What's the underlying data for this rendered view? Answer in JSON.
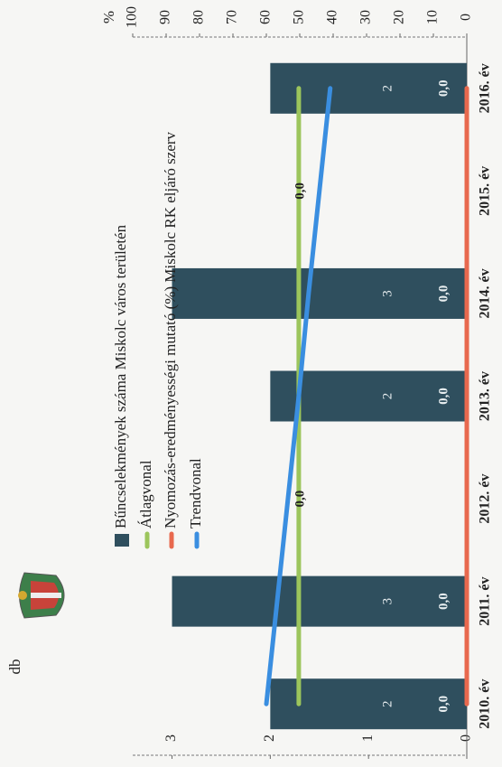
{
  "chart_data": {
    "type": "bar",
    "categories": [
      "2010. év",
      "2011. év",
      "2012. év",
      "2013. év",
      "2014. év",
      "2015. év",
      "2016. év"
    ],
    "series": [
      {
        "name": "Bűncselekmények száma Miskolc város területén",
        "type": "bar",
        "color": "#2f4f5e",
        "values": [
          2,
          3,
          0,
          2,
          3,
          0,
          2
        ]
      },
      {
        "name": "Átlagvonal",
        "type": "line",
        "color": "#9cc55c",
        "values": [
          1.71,
          1.71,
          1.71,
          1.71,
          1.71,
          1.71,
          1.71
        ]
      },
      {
        "name": "Nyomozás-eredményességi mutató (%) Miskolc RK eljáró szerv",
        "type": "line",
        "axis": "y2",
        "color": "#e8694e",
        "values": [
          0,
          0,
          0,
          0,
          0,
          0,
          0
        ],
        "value_labels": [
          "0,0",
          "0,0",
          "0,0",
          "0,0",
          "0,0",
          "0,0",
          "0,0"
        ]
      },
      {
        "name": "Trendvonal",
        "type": "line",
        "color": "#3a8ee0",
        "values": [
          2.04,
          1.93,
          1.82,
          1.71,
          1.61,
          1.5,
          1.39
        ]
      }
    ],
    "ylabel": "db",
    "y2label": "%",
    "ylim": [
      0,
      3.4
    ],
    "yticks": [
      0,
      1,
      2,
      3
    ],
    "y2lim": [
      0,
      100
    ],
    "y2ticks": [
      0,
      10,
      20,
      30,
      40,
      50,
      60,
      70,
      80,
      90,
      100
    ],
    "legend": "top-left"
  }
}
